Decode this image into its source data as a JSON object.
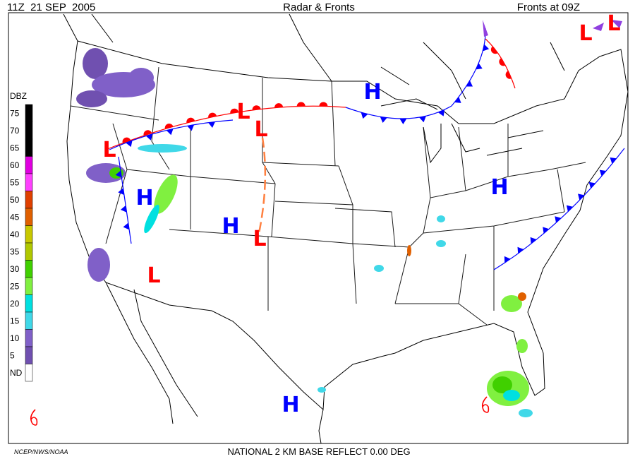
{
  "header": {
    "time": "11Z  21 SEP  2005",
    "title": "Radar & Fronts",
    "fronts_time": "Fronts at 09Z"
  },
  "legend": {
    "title": "DBZ",
    "levels": [
      {
        "label": "75",
        "color": "#000000"
      },
      {
        "label": "70",
        "color": "#000000"
      },
      {
        "label": "65",
        "color": "#000000"
      },
      {
        "label": "60",
        "color": "#e000e0"
      },
      {
        "label": "55",
        "color": "#ff40ff"
      },
      {
        "label": "50",
        "color": "#e04000"
      },
      {
        "label": "45",
        "color": "#e06000"
      },
      {
        "label": "40",
        "color": "#c8c800"
      },
      {
        "label": "35",
        "color": "#b0c800"
      },
      {
        "label": "30",
        "color": "#40d000"
      },
      {
        "label": "25",
        "color": "#80f040"
      },
      {
        "label": "20",
        "color": "#00e0e0"
      },
      {
        "label": "15",
        "color": "#40d8e8"
      },
      {
        "label": "10",
        "color": "#8060c8"
      },
      {
        "label": "5",
        "color": "#7050b0"
      },
      {
        "label": "ND",
        "color": "#ffffff"
      }
    ]
  },
  "pressure_centers": [
    {
      "label": "L",
      "color": "#ff0000"
    },
    {
      "label": "L",
      "color": "#ff0000"
    },
    {
      "label": "L",
      "color": "#ff0000"
    },
    {
      "label": "L",
      "color": "#ff0000"
    },
    {
      "label": "L",
      "color": "#ff0000"
    },
    {
      "label": "L",
      "color": "#ff0000"
    },
    {
      "label": "L",
      "color": "#ff0000"
    },
    {
      "label": "H",
      "color": "#0000ff"
    },
    {
      "label": "H",
      "color": "#0000ff"
    },
    {
      "label": "H",
      "color": "#0000ff"
    },
    {
      "label": "H",
      "color": "#0000ff"
    },
    {
      "label": "H",
      "color": "#0000ff"
    }
  ],
  "footer": {
    "credit": "NCEP/NWS/NOAA",
    "product": "NATIONAL 2 KM BASE REFLECT 0.00 DEG"
  }
}
